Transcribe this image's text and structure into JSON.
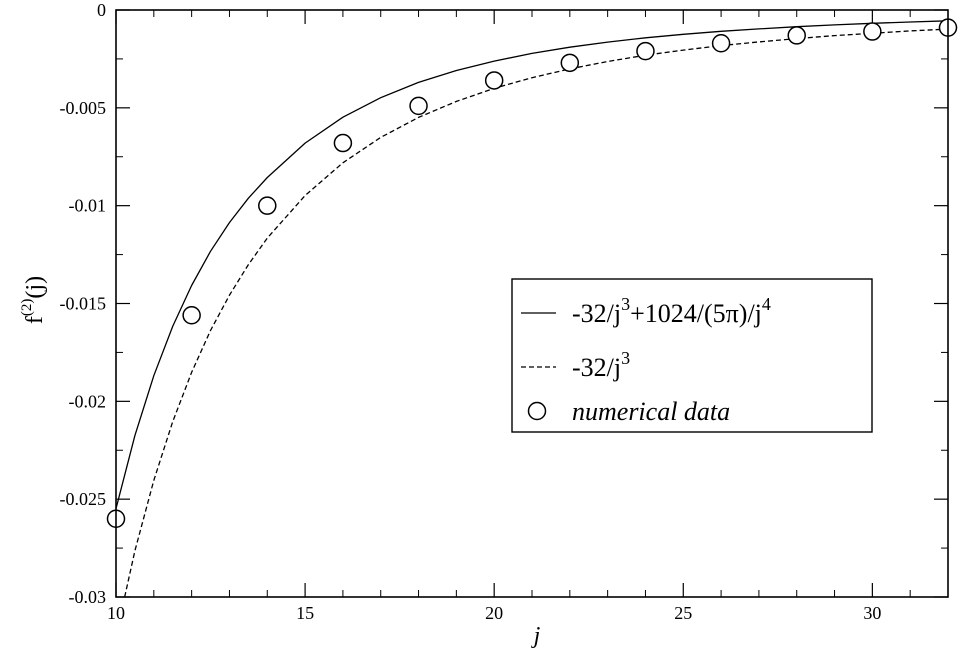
{
  "chart_data": {
    "type": "line",
    "xlabel": "j",
    "ylabel": {
      "base": "f",
      "superscript": "(2)",
      "suffix": "(j)"
    },
    "xlim": [
      10,
      32
    ],
    "ylim": [
      -0.03,
      0
    ],
    "x_ticks": [
      10,
      15,
      20,
      25,
      30
    ],
    "x_tick_labels": [
      "10",
      "15",
      "20",
      "25",
      "30"
    ],
    "y_ticks": [
      0,
      -0.005,
      -0.01,
      -0.015,
      -0.02,
      -0.025,
      -0.03
    ],
    "y_tick_labels": [
      "0",
      "-0.005",
      "-0.01",
      "-0.015",
      "-0.02",
      "-0.025",
      "-0.03"
    ],
    "grid": false,
    "legend_position": "center-right",
    "series": [
      {
        "name": "-32/j³+1024/(5π)/j⁴",
        "legend_parts": [
          {
            "t": "-32/j",
            "sup": false
          },
          {
            "t": "3",
            "sup": true
          },
          {
            "t": "+1024/(5π)/j",
            "sup": false
          },
          {
            "t": "4",
            "sup": true
          }
        ],
        "style": "solid",
        "x": [
          10,
          10.5,
          11,
          11.5,
          12,
          12.5,
          13,
          13.5,
          14,
          15,
          16,
          17,
          18,
          19,
          20,
          21,
          22,
          23,
          24,
          25,
          26,
          27,
          28,
          29,
          30,
          31,
          32
        ],
        "y": [
          -0.02548,
          -0.02175,
          -0.01869,
          -0.01617,
          -0.01408,
          -0.01233,
          -0.01086,
          -0.00962,
          -0.00856,
          -0.0068,
          -0.00548,
          -0.00448,
          -0.0037,
          -0.00309,
          -0.00261,
          -0.00222,
          -0.0019,
          -0.00164,
          -0.00142,
          -0.00124,
          -0.00109,
          -0.000964,
          -0.000855,
          -0.000762,
          -0.000682,
          -0.000613,
          -0.000553
        ]
      },
      {
        "name": "-32/j³",
        "legend_parts": [
          {
            "t": "-32/j",
            "sup": false
          },
          {
            "t": "3",
            "sup": true
          }
        ],
        "style": "dashed",
        "x": [
          10,
          10.5,
          11,
          11.5,
          12,
          12.5,
          13,
          13.5,
          14,
          15,
          16,
          17,
          18,
          19,
          20,
          21,
          22,
          23,
          24,
          25,
          26,
          27,
          28,
          29,
          30,
          31,
          32
        ],
        "y": [
          -0.032,
          -0.02764,
          -0.02404,
          -0.02104,
          -0.01852,
          -0.01638,
          -0.01457,
          -0.01301,
          -0.01166,
          -0.00948,
          -0.00781,
          -0.00651,
          -0.00549,
          -0.00467,
          -0.004,
          -0.00346,
          -0.00301,
          -0.00263,
          -0.00231,
          -0.00205,
          -0.00182,
          -0.00163,
          -0.00146,
          -0.00131,
          -0.00119,
          -0.00107,
          -0.000977
        ]
      },
      {
        "name": "numerical data",
        "legend_parts": [
          {
            "t": "numerical data",
            "sup": false
          }
        ],
        "style": "markers",
        "x": [
          10,
          12,
          14,
          16,
          18,
          20,
          22,
          24,
          26,
          28,
          30,
          32
        ],
        "y": [
          -0.026,
          -0.0156,
          -0.01,
          -0.0068,
          -0.0049,
          -0.0036,
          -0.0027,
          -0.0021,
          -0.0017,
          -0.0013,
          -0.0011,
          -0.0009
        ]
      }
    ]
  }
}
